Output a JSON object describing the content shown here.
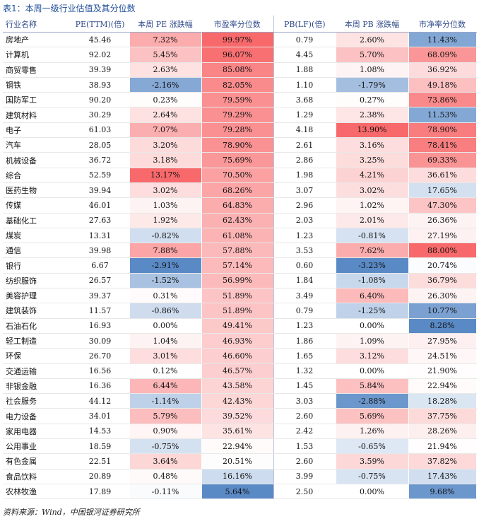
{
  "title": "表1：本周一级行业估值及其分位数",
  "table": {
    "header": [
      "行业名称",
      "PE(TTM)(倍)",
      "本周 PE 涨跌幅",
      "市盈率分位数",
      "PB(LF)(倍)",
      "本周 PB 涨跌幅",
      "市净率分位数"
    ],
    "rows": [
      [
        "房地产",
        "45.46",
        "7.32%",
        "99.97%",
        "0.79",
        "2.60%",
        "11.43%"
      ],
      [
        "计算机",
        "92.02",
        "5.45%",
        "96.07%",
        "4.45",
        "5.70%",
        "68.09%"
      ],
      [
        "商贸零售",
        "39.39",
        "2.63%",
        "85.08%",
        "1.88",
        "1.08%",
        "36.92%"
      ],
      [
        "钢铁",
        "38.93",
        "-2.16%",
        "82.05%",
        "1.10",
        "-1.79%",
        "49.18%"
      ],
      [
        "国防军工",
        "90.20",
        "0.23%",
        "79.59%",
        "3.68",
        "0.27%",
        "73.86%"
      ],
      [
        "建筑材料",
        "30.29",
        "2.64%",
        "79.29%",
        "1.29",
        "2.38%",
        "11.53%"
      ],
      [
        "电子",
        "61.03",
        "7.07%",
        "79.28%",
        "4.18",
        "13.90%",
        "78.90%"
      ],
      [
        "汽车",
        "28.05",
        "3.20%",
        "78.90%",
        "2.61",
        "3.16%",
        "78.41%"
      ],
      [
        "机械设备",
        "36.72",
        "3.18%",
        "75.69%",
        "2.86",
        "3.25%",
        "69.33%"
      ],
      [
        "综合",
        "52.59",
        "13.17%",
        "70.50%",
        "1.98",
        "4.21%",
        "36.61%"
      ],
      [
        "医药生物",
        "39.94",
        "3.02%",
        "68.26%",
        "3.07",
        "3.02%",
        "17.65%"
      ],
      [
        "传媒",
        "46.01",
        "1.03%",
        "64.83%",
        "2.96",
        "1.02%",
        "47.30%"
      ],
      [
        "基础化工",
        "27.63",
        "1.92%",
        "62.43%",
        "2.03",
        "2.01%",
        "26.36%"
      ],
      [
        "煤炭",
        "13.31",
        "-0.82%",
        "61.08%",
        "1.23",
        "-0.81%",
        "27.19%"
      ],
      [
        "通信",
        "39.98",
        "7.88%",
        "57.88%",
        "3.53",
        "7.62%",
        "88.00%"
      ],
      [
        "银行",
        "6.67",
        "-2.91%",
        "57.14%",
        "0.60",
        "-3.23%",
        "20.74%"
      ],
      [
        "纺织服饰",
        "26.57",
        "-1.52%",
        "56.99%",
        "1.84",
        "-1.08%",
        "36.79%"
      ],
      [
        "美容护理",
        "39.37",
        "0.31%",
        "51.89%",
        "3.49",
        "6.40%",
        "26.30%"
      ],
      [
        "建筑装饰",
        "11.57",
        "-0.86%",
        "51.89%",
        "0.79",
        "-1.25%",
        "10.77%"
      ],
      [
        "石油石化",
        "16.93",
        "0.00%",
        "49.41%",
        "1.23",
        "0.00%",
        "8.28%"
      ],
      [
        "轻工制造",
        "30.09",
        "1.04%",
        "46.93%",
        "1.86",
        "1.09%",
        "27.95%"
      ],
      [
        "环保",
        "26.70",
        "3.01%",
        "46.60%",
        "1.65",
        "3.12%",
        "24.51%"
      ],
      [
        "交通运输",
        "16.56",
        "0.12%",
        "46.57%",
        "1.32",
        "0.00%",
        "21.90%"
      ],
      [
        "非银金融",
        "16.36",
        "6.44%",
        "43.58%",
        "1.45",
        "5.84%",
        "22.94%"
      ],
      [
        "社会服务",
        "44.12",
        "-1.14%",
        "42.43%",
        "3.03",
        "-2.88%",
        "18.28%"
      ],
      [
        "电力设备",
        "34.01",
        "5.79%",
        "39.52%",
        "2.60",
        "5.69%",
        "37.75%"
      ],
      [
        "家用电器",
        "14.53",
        "0.90%",
        "35.61%",
        "2.42",
        "1.26%",
        "28.26%"
      ],
      [
        "公用事业",
        "18.59",
        "-0.75%",
        "22.94%",
        "1.53",
        "-0.65%",
        "21.94%"
      ],
      [
        "有色金属",
        "22.51",
        "3.64%",
        "20.51%",
        "2.60",
        "3.59%",
        "37.82%"
      ],
      [
        "食品饮料",
        "20.89",
        "0.48%",
        "16.16%",
        "3.99",
        "-0.75%",
        "17.43%"
      ],
      [
        "农林牧渔",
        "17.89",
        "-0.11%",
        "5.64%",
        "2.50",
        "0.00%",
        "9.68%"
      ]
    ]
  },
  "footer": "资料来源：Wind，中国银河证券研究所"
}
